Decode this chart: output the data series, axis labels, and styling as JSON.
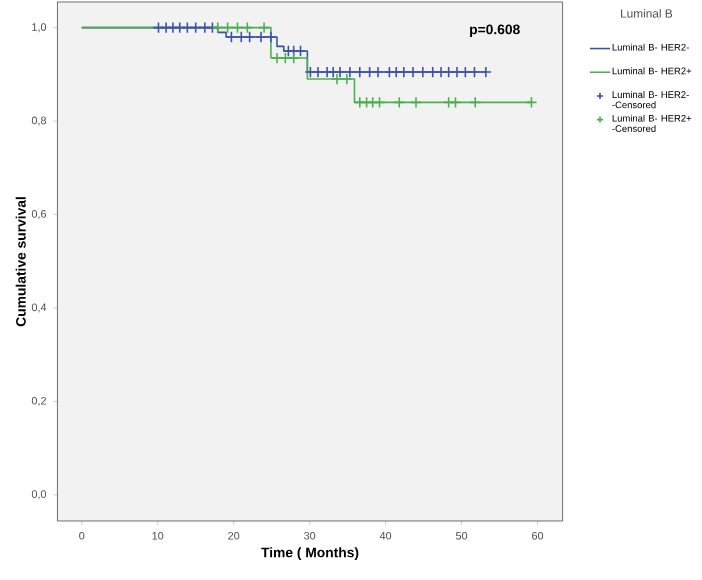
{
  "chart_data": {
    "type": "step",
    "xlabel": "Time ( Months)",
    "ylabel": "Cumulative survival",
    "legend_title": "Luminal B",
    "annotations": [
      "p=0.608"
    ],
    "xlim": [
      -3.2,
      63.3
    ],
    "ylim": [
      -0.056,
      1.055
    ],
    "xticks": [
      0,
      10,
      20,
      30,
      40,
      50,
      60
    ],
    "yticks": [
      {
        "value": 0,
        "label": "0,0"
      },
      {
        "value": 0.2,
        "label": "0,2"
      },
      {
        "value": 0.4,
        "label": "0,4"
      },
      {
        "value": 0.6,
        "label": "0,6"
      },
      {
        "value": 0.8,
        "label": "0,8"
      },
      {
        "value": 1.0,
        "label": "1,0"
      }
    ],
    "grid": false,
    "legend": "right",
    "series": [
      {
        "name": "Luminal B- HER2-",
        "color": "#3f51a6",
        "x": [
          0,
          17.9,
          19.0,
          25.7,
          26.6,
          29.7,
          53.2
        ],
        "values": [
          1,
          0.99,
          0.98,
          0.96,
          0.95,
          0.905,
          0.905
        ]
      },
      {
        "name": "Luminal B- HER2+",
        "color": "#4caf50",
        "x": [
          0,
          24.9,
          29.7,
          35.9,
          59.2
        ],
        "values": [
          1,
          0.935,
          0.89,
          0.84,
          0.84
        ]
      },
      {
        "name": "Luminal B- HER2- -Censored",
        "type": "scatter",
        "marker": "cross",
        "color": "#3f51a6",
        "x": [
          10.1,
          11.1,
          12.0,
          12.9,
          13.9,
          15.0,
          16.2,
          17.2,
          19.7,
          21.0,
          22.1,
          23.6,
          24.9,
          27.2,
          27.9,
          28.8,
          30.1,
          31.1,
          32.3,
          33.1,
          34.0,
          35.3,
          36.6,
          37.9,
          39.0,
          40.5,
          41.4,
          42.4,
          43.6,
          44.9,
          46.2,
          47.3,
          48.3,
          49.4,
          50.5,
          51.7,
          53.2
        ],
        "values": [
          1,
          1,
          1,
          1,
          1,
          1,
          1,
          1,
          0.98,
          0.98,
          0.98,
          0.98,
          0.98,
          0.95,
          0.95,
          0.95,
          0.905,
          0.905,
          0.905,
          0.905,
          0.905,
          0.905,
          0.905,
          0.905,
          0.905,
          0.905,
          0.905,
          0.905,
          0.905,
          0.905,
          0.905,
          0.905,
          0.905,
          0.905,
          0.905,
          0.905,
          0.905
        ]
      },
      {
        "name": "Luminal B- HER2+ -Censored",
        "type": "scatter",
        "marker": "cross",
        "color": "#4caf50",
        "x": [
          17.9,
          19.2,
          20.5,
          21.8,
          24.0,
          25.7,
          26.8,
          27.9,
          33.6,
          34.9,
          36.6,
          37.5,
          38.3,
          39.2,
          41.8,
          44.0,
          48.3,
          49.2,
          51.8,
          59.2
        ],
        "values": [
          1,
          1,
          1,
          1,
          1,
          0.935,
          0.935,
          0.935,
          0.89,
          0.89,
          0.84,
          0.84,
          0.84,
          0.84,
          0.84,
          0.84,
          0.84,
          0.84,
          0.84,
          0.84
        ]
      }
    ]
  }
}
